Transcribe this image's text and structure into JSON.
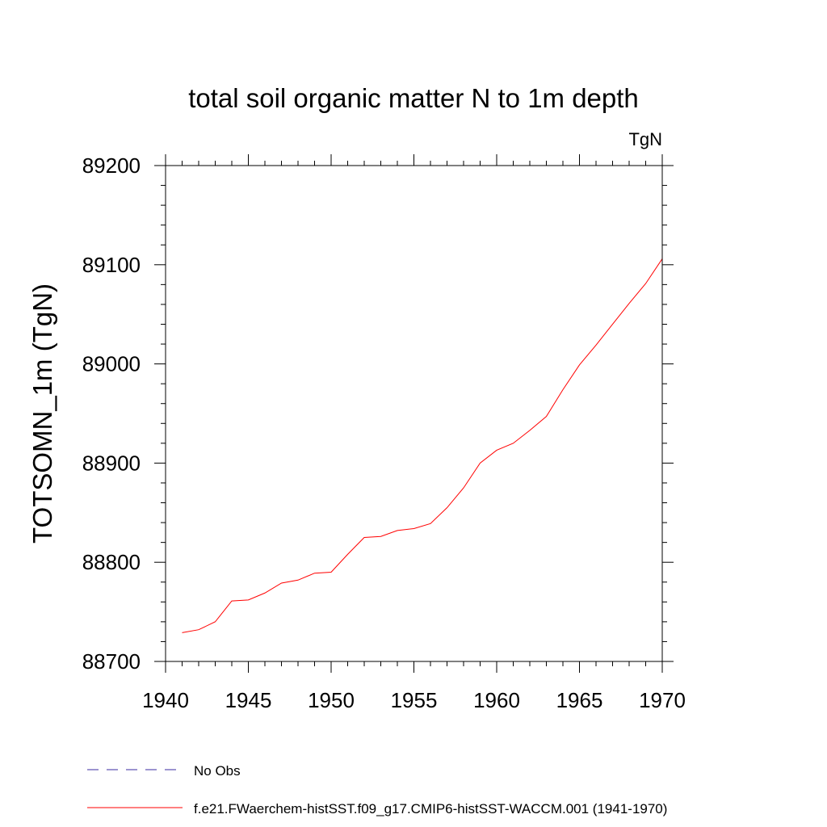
{
  "chart_data": {
    "type": "line",
    "title": "total soil organic matter N to 1m depth",
    "units": "TgN",
    "ylabel": "TOTSOMN_1m  (TgN)",
    "xlabel": "",
    "xlim": [
      1940,
      1970
    ],
    "ylim": [
      88700,
      89200
    ],
    "x_ticks": [
      1940,
      1945,
      1950,
      1955,
      1960,
      1965,
      1970
    ],
    "y_ticks": [
      88700,
      88800,
      88900,
      89000,
      89100,
      89200
    ],
    "grid": false,
    "legend_position": "bottom-left",
    "series": [
      {
        "name": "No Obs",
        "color": "#3a2aa0",
        "dash": "dashed",
        "x": [],
        "y": []
      },
      {
        "name": "f.e21.FWaerchem-histSST.f09_g17.CMIP6-histSST-WACCM.001 (1941-1970)",
        "color": "#ff0000",
        "dash": "solid",
        "x": [
          1941,
          1942,
          1943,
          1944,
          1945,
          1946,
          1947,
          1948,
          1949,
          1950,
          1951,
          1952,
          1953,
          1954,
          1955,
          1956,
          1957,
          1958,
          1959,
          1960,
          1961,
          1962,
          1963,
          1964,
          1965,
          1966,
          1967,
          1968,
          1969,
          1970
        ],
        "y": [
          88729,
          88732,
          88740,
          88761,
          88762,
          88769,
          88779,
          88782,
          88789,
          88790,
          88808,
          88825,
          88826,
          88832,
          88834,
          88839,
          88855,
          88875,
          88900,
          88913,
          88920,
          88933,
          88947,
          88974,
          88999,
          89019,
          89040,
          89061,
          89081,
          89106
        ]
      }
    ]
  }
}
